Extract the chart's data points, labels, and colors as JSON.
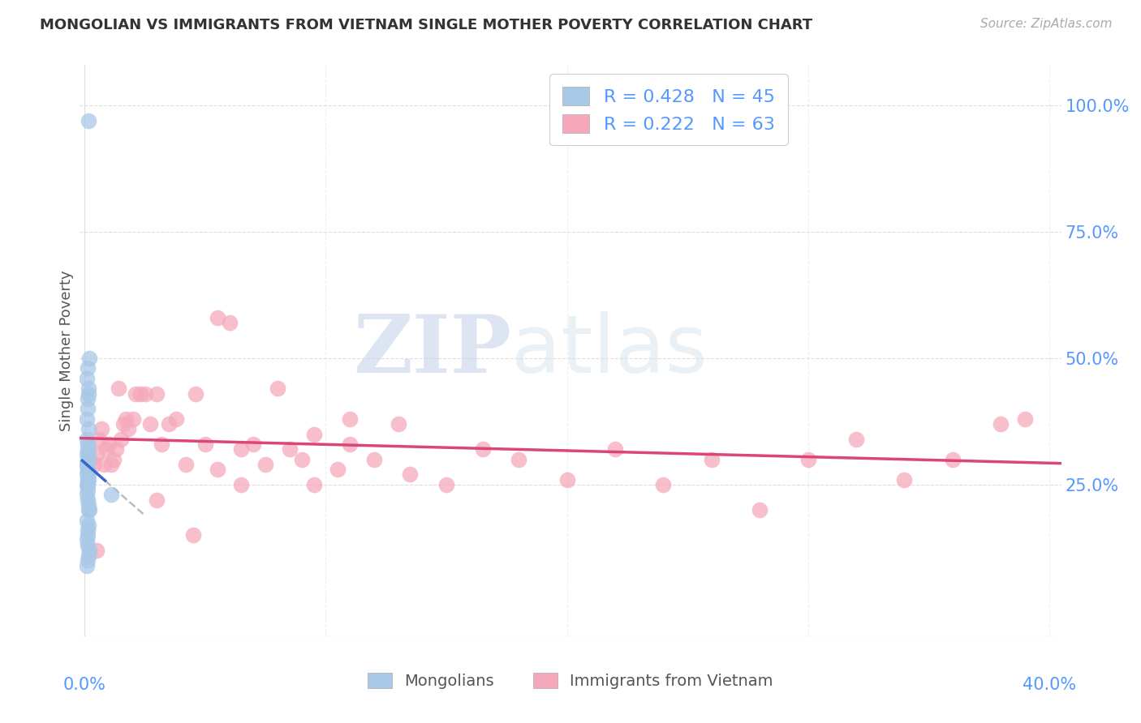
{
  "title": "MONGOLIAN VS IMMIGRANTS FROM VIETNAM SINGLE MOTHER POVERTY CORRELATION CHART",
  "source": "Source: ZipAtlas.com",
  "ylabel": "Single Mother Poverty",
  "ytick_labels": [
    "100.0%",
    "75.0%",
    "50.0%",
    "25.0%"
  ],
  "ytick_values": [
    1.0,
    0.75,
    0.5,
    0.25
  ],
  "xlim": [
    -0.002,
    0.405
  ],
  "ylim": [
    -0.05,
    1.08
  ],
  "mongolian_color": "#a8c8e8",
  "vietnam_color": "#f5a8bc",
  "mongolian_line_color": "#3366cc",
  "vietnam_line_color": "#dd4477",
  "dash_color": "#bbbbbb",
  "legend_R_mongolian": "0.428",
  "legend_N_mongolian": "45",
  "legend_R_vietnam": "0.222",
  "legend_N_vietnam": "63",
  "legend_label_mongolian": "Mongolians",
  "legend_label_vietnam": "Immigrants from Vietnam",
  "mongolian_x": [
    0.0015,
    0.0018,
    0.0012,
    0.001,
    0.0014,
    0.0016,
    0.0011,
    0.0013,
    0.0009,
    0.0017,
    0.001,
    0.0012,
    0.0011,
    0.0008,
    0.0014,
    0.0013,
    0.0011,
    0.001,
    0.0009,
    0.0012,
    0.0013,
    0.0011,
    0.0015,
    0.001,
    0.0012,
    0.0014,
    0.0011,
    0.0009,
    0.0013,
    0.001,
    0.0012,
    0.0016,
    0.0018,
    0.0015,
    0.001,
    0.0014,
    0.0011,
    0.0012,
    0.001,
    0.0013,
    0.002,
    0.0017,
    0.0011,
    0.0009,
    0.011
  ],
  "mongolian_y": [
    0.97,
    0.5,
    0.48,
    0.46,
    0.44,
    0.43,
    0.42,
    0.4,
    0.38,
    0.36,
    0.34,
    0.33,
    0.32,
    0.31,
    0.31,
    0.3,
    0.3,
    0.29,
    0.29,
    0.29,
    0.28,
    0.28,
    0.27,
    0.27,
    0.26,
    0.26,
    0.25,
    0.25,
    0.24,
    0.23,
    0.22,
    0.21,
    0.2,
    0.2,
    0.18,
    0.17,
    0.16,
    0.15,
    0.14,
    0.13,
    0.12,
    0.11,
    0.1,
    0.09,
    0.23
  ],
  "vietnam_x": [
    0.002,
    0.004,
    0.005,
    0.006,
    0.007,
    0.008,
    0.009,
    0.01,
    0.011,
    0.012,
    0.013,
    0.014,
    0.015,
    0.016,
    0.017,
    0.018,
    0.02,
    0.021,
    0.023,
    0.025,
    0.027,
    0.03,
    0.032,
    0.035,
    0.038,
    0.042,
    0.046,
    0.05,
    0.055,
    0.06,
    0.065,
    0.07,
    0.08,
    0.09,
    0.095,
    0.105,
    0.11,
    0.12,
    0.135,
    0.15,
    0.165,
    0.18,
    0.2,
    0.22,
    0.24,
    0.26,
    0.28,
    0.3,
    0.32,
    0.34,
    0.36,
    0.38,
    0.005,
    0.03,
    0.045,
    0.055,
    0.065,
    0.075,
    0.085,
    0.095,
    0.11,
    0.13,
    0.39
  ],
  "vietnam_y": [
    0.3,
    0.29,
    0.31,
    0.34,
    0.36,
    0.29,
    0.32,
    0.33,
    0.29,
    0.3,
    0.32,
    0.44,
    0.34,
    0.37,
    0.38,
    0.36,
    0.38,
    0.43,
    0.43,
    0.43,
    0.37,
    0.43,
    0.33,
    0.37,
    0.38,
    0.29,
    0.43,
    0.33,
    0.58,
    0.57,
    0.32,
    0.33,
    0.44,
    0.3,
    0.25,
    0.28,
    0.33,
    0.3,
    0.27,
    0.25,
    0.32,
    0.3,
    0.26,
    0.32,
    0.25,
    0.3,
    0.2,
    0.3,
    0.34,
    0.26,
    0.3,
    0.37,
    0.12,
    0.22,
    0.15,
    0.28,
    0.25,
    0.29,
    0.32,
    0.35,
    0.38,
    0.37,
    0.38
  ],
  "watermark_zip": "ZIP",
  "watermark_atlas": "atlas",
  "background_color": "#ffffff",
  "grid_color": "#dddddd"
}
